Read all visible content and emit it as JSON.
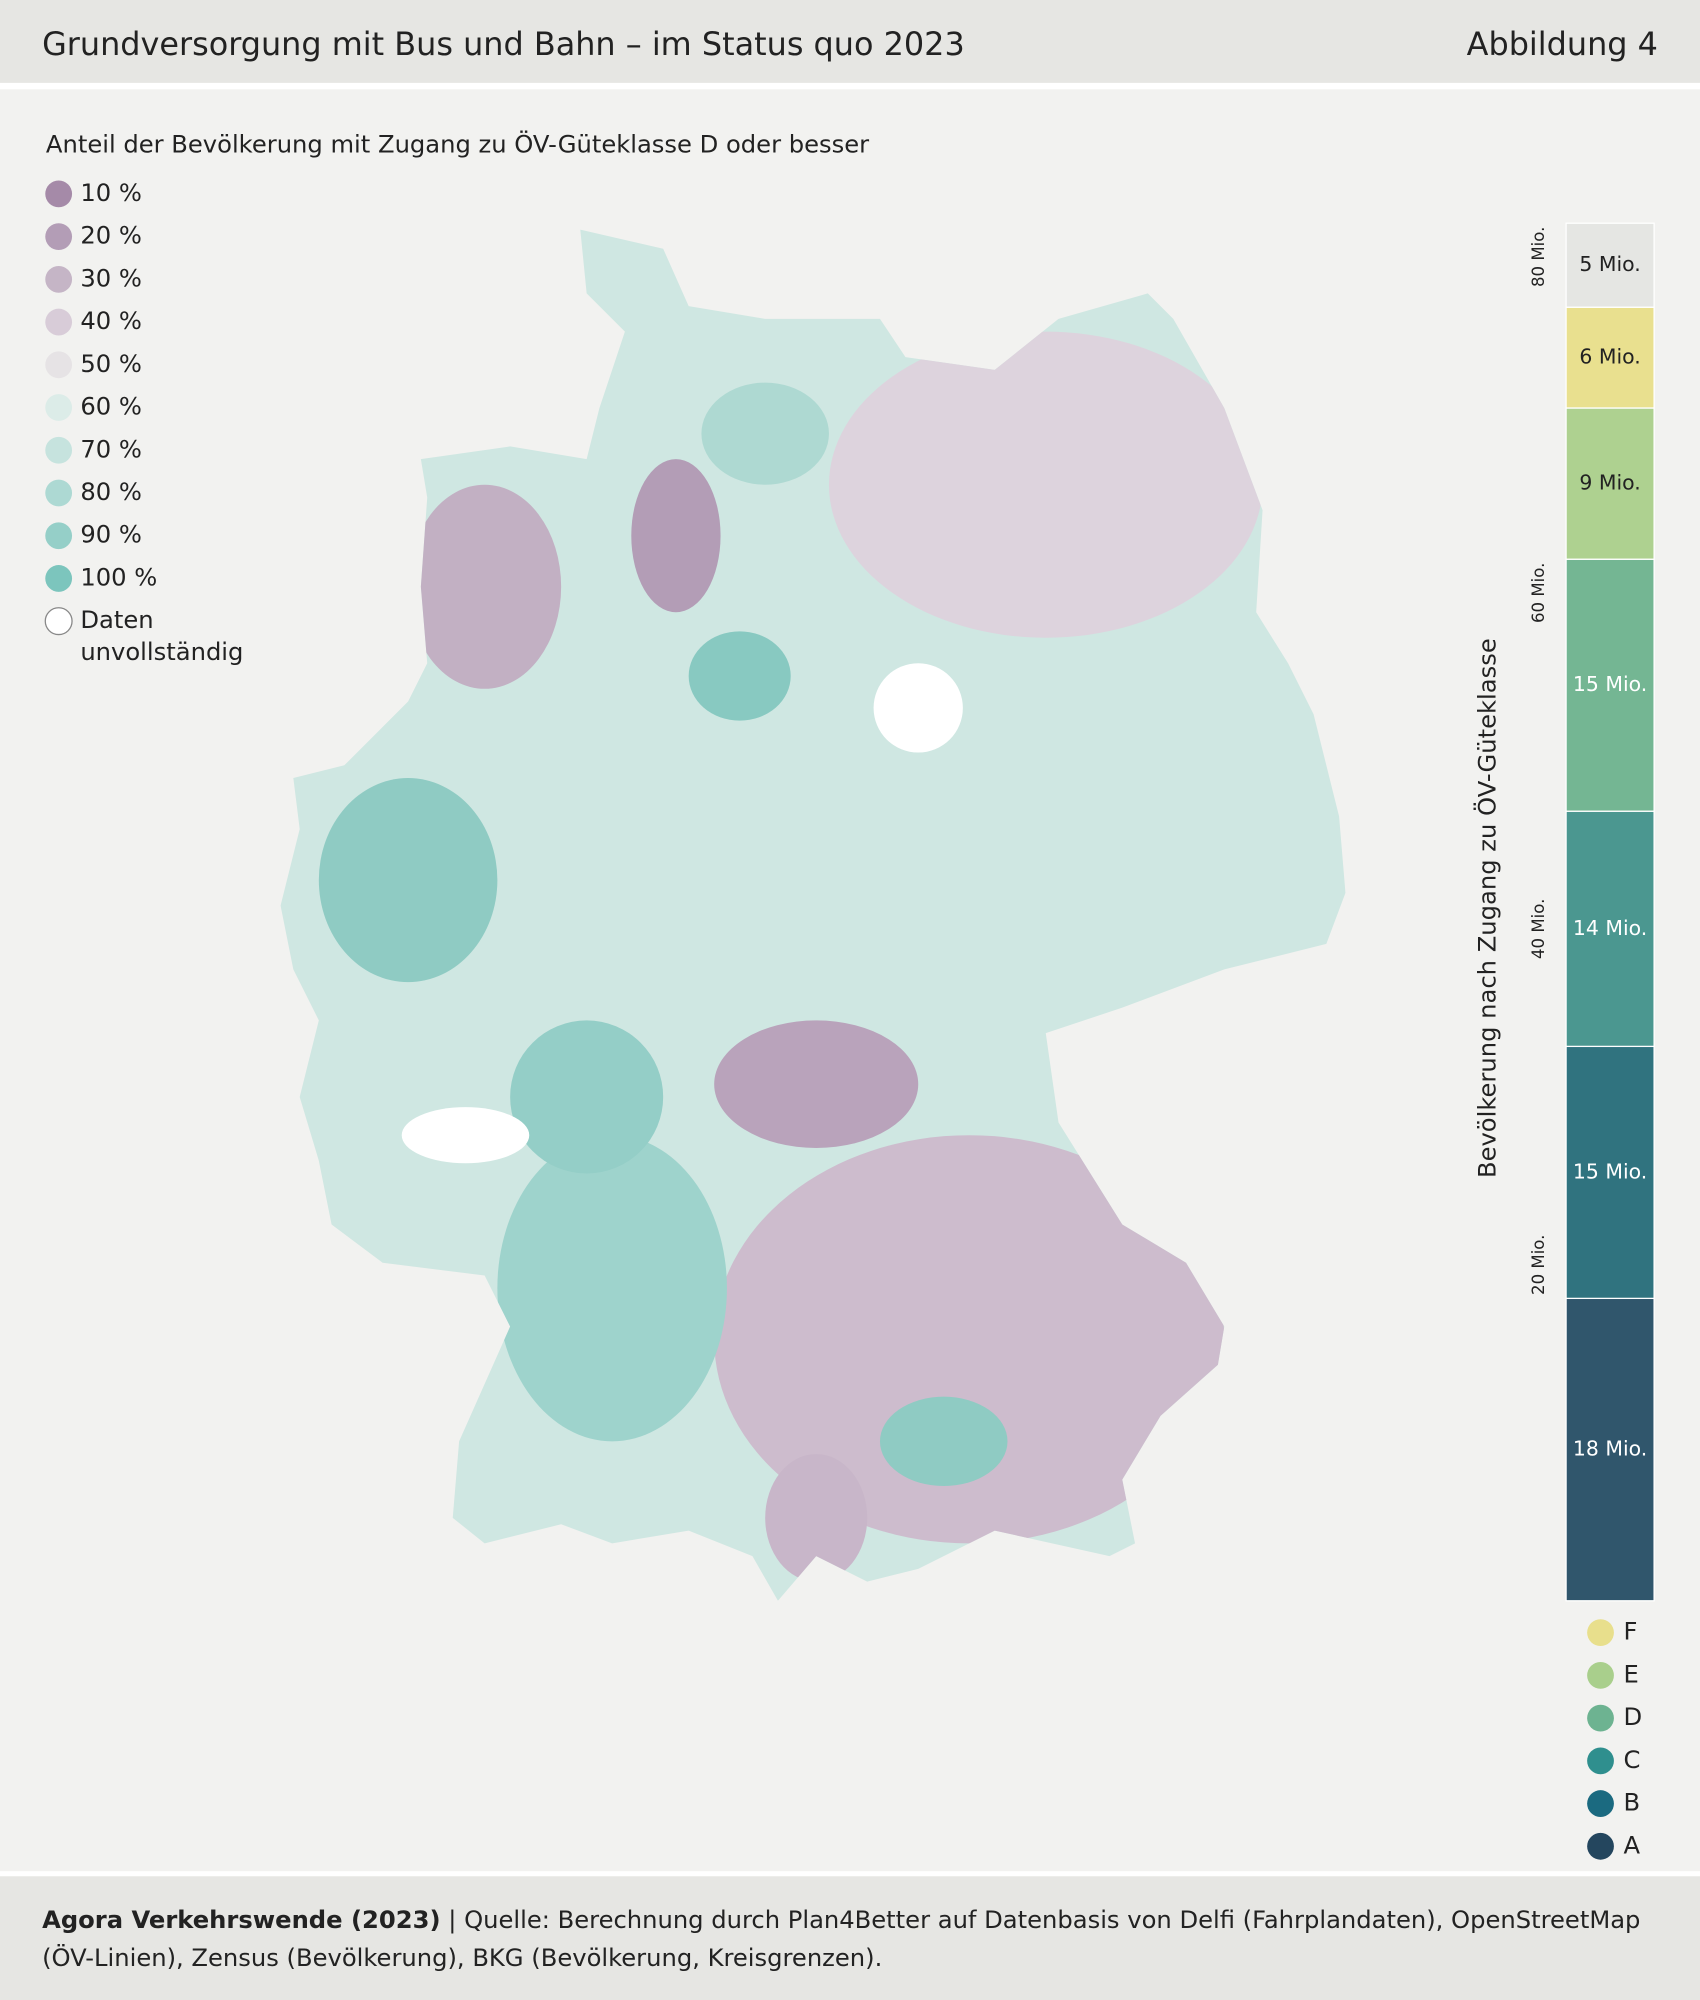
{
  "header": {
    "title": "Grundversorgung mit Bus und Bahn – im Status quo 2023",
    "figure": "Abbildung 4"
  },
  "map_legend": {
    "title": "Anteil der Bevölkerung mit Zugang zu ÖV-Güteklasse D oder besser",
    "items": [
      {
        "label": "10 %",
        "color": "#a58aa8"
      },
      {
        "label": "20 %",
        "color": "#b39db6"
      },
      {
        "label": "30 %",
        "color": "#c5b5c6"
      },
      {
        "label": "40 %",
        "color": "#d8ccd8"
      },
      {
        "label": "50 %",
        "color": "#e6e3e5"
      },
      {
        "label": "60 %",
        "color": "#dcece8"
      },
      {
        "label": "70 %",
        "color": "#c6e3de"
      },
      {
        "label": "80 %",
        "color": "#add9d3"
      },
      {
        "label": "90 %",
        "color": "#95cfc8"
      },
      {
        "label": "100 %",
        "color": "#7cc5bd"
      }
    ],
    "missing": {
      "label_lines": [
        "Daten",
        "unvollständig"
      ],
      "color": "#ffffff"
    }
  },
  "chart_data": {
    "type": "stacked-bar",
    "y_label": "Bevölkerung nach Zugang zu ÖV-Güteklasse",
    "categories": [
      null,
      "F",
      "E",
      "D",
      "C",
      "B",
      "A"
    ],
    "values": [
      5,
      6,
      9,
      15,
      14,
      15,
      18
    ],
    "value_labels": [
      "5 Mio.",
      "6 Mio.",
      "9 Mio.",
      "15 Mio.",
      "14 Mio.",
      "15 Mio.",
      "18 Mio."
    ],
    "colors": [
      "#e5e6e3",
      "#e9e08f",
      "#aed190",
      "#74b693",
      "#4b9790",
      "#30737f",
      "#30566c"
    ],
    "legend_colors": [
      null,
      "#e8df8c",
      "#a9cf8c",
      "#6db391",
      "#2f8f8e",
      "#1b6a80",
      "#24465e"
    ],
    "ylim": [
      0,
      82
    ],
    "yticks": [
      {
        "value": 20,
        "label": "20 Mio."
      },
      {
        "value": 40,
        "label": "40 Mio."
      },
      {
        "value": 60,
        "label": "60 Mio."
      },
      {
        "value": 80,
        "label": "80 Mio."
      }
    ]
  },
  "footer": {
    "source_bold": "Agora Verkehrswende (2023)",
    "source_line1": "| Quelle: Berechnung durch Plan4Better auf Datenbasis von Delfi (Fahrplandaten), OpenStreetMap",
    "source_line2": "(ÖV-Linien), Zensus (Bevölkerung), BKG (Bevölkerung, Kreisgrenzen)."
  }
}
